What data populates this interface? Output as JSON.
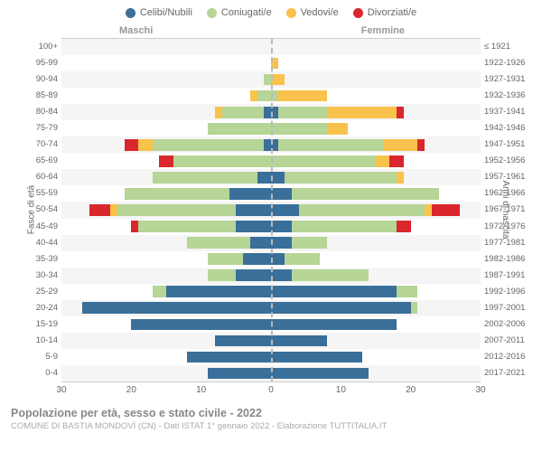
{
  "chart": {
    "type": "population-pyramid",
    "title": "Popolazione per età, sesso e stato civile - 2022",
    "source": "COMUNE DI BASTIA MONDOVÌ (CN) - Dati ISTAT 1° gennaio 2022 - Elaborazione TUTTITALIA.IT",
    "gender_label_m": "Maschi",
    "gender_label_f": "Femmine",
    "ylabel_left": "Fasce di età",
    "ylabel_right": "Anni di nascita",
    "xmax": 30,
    "xticks": [
      30,
      20,
      10,
      0,
      10,
      20,
      30
    ],
    "colors": {
      "celibi": "#3a6f9a",
      "coniugati": "#b6d596",
      "vedovi": "#f9c24c",
      "divorziati": "#d9272d",
      "grid_alt": "#f5f5f5",
      "background": "#ffffff",
      "text": "#666666"
    },
    "legend": [
      {
        "label": "Celibi/Nubili",
        "colorKey": "celibi"
      },
      {
        "label": "Coniugati/e",
        "colorKey": "coniugati"
      },
      {
        "label": "Vedovi/e",
        "colorKey": "vedovi"
      },
      {
        "label": "Divorziati/e",
        "colorKey": "divorziati"
      }
    ],
    "rows": [
      {
        "age": "100+",
        "birth": "≤ 1921",
        "m": [
          0,
          0,
          0,
          0
        ],
        "f": [
          0,
          0,
          0,
          0
        ]
      },
      {
        "age": "95-99",
        "birth": "1922-1926",
        "m": [
          0,
          0,
          0,
          0
        ],
        "f": [
          0,
          0,
          1,
          0
        ]
      },
      {
        "age": "90-94",
        "birth": "1927-1931",
        "m": [
          0,
          1,
          0,
          0
        ],
        "f": [
          0,
          0,
          2,
          0
        ]
      },
      {
        "age": "85-89",
        "birth": "1932-1936",
        "m": [
          0,
          2,
          1,
          0
        ],
        "f": [
          0,
          1,
          7,
          0
        ]
      },
      {
        "age": "80-84",
        "birth": "1937-1941",
        "m": [
          1,
          6,
          1,
          0
        ],
        "f": [
          1,
          7,
          10,
          1
        ]
      },
      {
        "age": "75-79",
        "birth": "1942-1946",
        "m": [
          0,
          9,
          0,
          0
        ],
        "f": [
          0,
          8,
          3,
          0
        ]
      },
      {
        "age": "70-74",
        "birth": "1947-1951",
        "m": [
          1,
          16,
          2,
          2
        ],
        "f": [
          1,
          15,
          5,
          1
        ]
      },
      {
        "age": "65-69",
        "birth": "1952-1956",
        "m": [
          0,
          14,
          0,
          2
        ],
        "f": [
          0,
          15,
          2,
          2
        ]
      },
      {
        "age": "60-64",
        "birth": "1957-1961",
        "m": [
          2,
          15,
          0,
          0
        ],
        "f": [
          2,
          16,
          1,
          0
        ]
      },
      {
        "age": "55-59",
        "birth": "1962-1966",
        "m": [
          6,
          15,
          0,
          0
        ],
        "f": [
          3,
          21,
          0,
          0
        ]
      },
      {
        "age": "50-54",
        "birth": "1967-1971",
        "m": [
          5,
          17,
          1,
          3
        ],
        "f": [
          4,
          18,
          1,
          4
        ]
      },
      {
        "age": "45-49",
        "birth": "1972-1976",
        "m": [
          5,
          14,
          0,
          1
        ],
        "f": [
          3,
          15,
          0,
          2
        ]
      },
      {
        "age": "40-44",
        "birth": "1977-1981",
        "m": [
          3,
          9,
          0,
          0
        ],
        "f": [
          3,
          5,
          0,
          0
        ]
      },
      {
        "age": "35-39",
        "birth": "1982-1986",
        "m": [
          4,
          5,
          0,
          0
        ],
        "f": [
          2,
          5,
          0,
          0
        ]
      },
      {
        "age": "30-34",
        "birth": "1987-1991",
        "m": [
          5,
          4,
          0,
          0
        ],
        "f": [
          3,
          11,
          0,
          0
        ]
      },
      {
        "age": "25-29",
        "birth": "1992-1996",
        "m": [
          15,
          2,
          0,
          0
        ],
        "f": [
          18,
          3,
          0,
          0
        ]
      },
      {
        "age": "20-24",
        "birth": "1997-2001",
        "m": [
          27,
          0,
          0,
          0
        ],
        "f": [
          20,
          1,
          0,
          0
        ]
      },
      {
        "age": "15-19",
        "birth": "2002-2006",
        "m": [
          20,
          0,
          0,
          0
        ],
        "f": [
          18,
          0,
          0,
          0
        ]
      },
      {
        "age": "10-14",
        "birth": "2007-2011",
        "m": [
          8,
          0,
          0,
          0
        ],
        "f": [
          8,
          0,
          0,
          0
        ]
      },
      {
        "age": "5-9",
        "birth": "2012-2016",
        "m": [
          12,
          0,
          0,
          0
        ],
        "f": [
          13,
          0,
          0,
          0
        ]
      },
      {
        "age": "0-4",
        "birth": "2017-2021",
        "m": [
          9,
          0,
          0,
          0
        ],
        "f": [
          14,
          0,
          0,
          0
        ]
      }
    ],
    "fontsize": {
      "legend": 11,
      "axis": 10,
      "labels": 9.5,
      "title": 12.5,
      "source": 9.5
    }
  }
}
